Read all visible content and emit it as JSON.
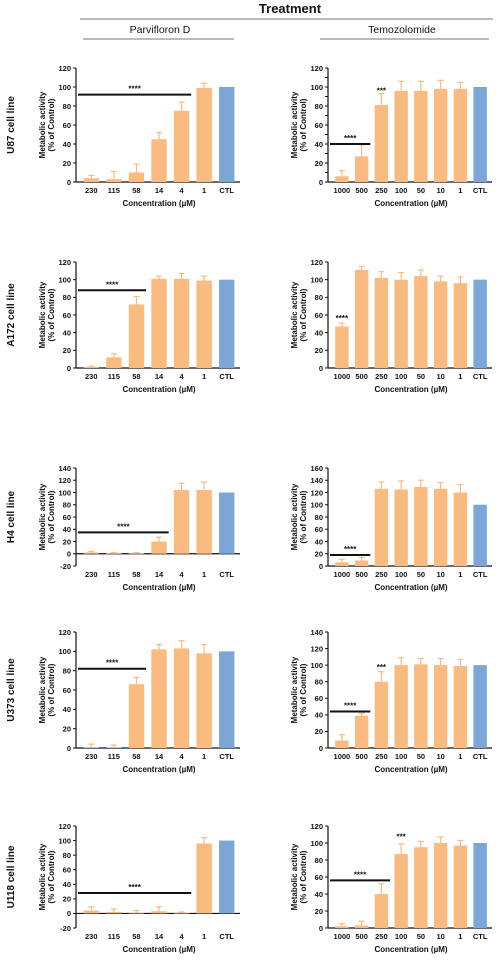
{
  "header": {
    "title": "Treatment",
    "columns": [
      "Parvifloron D",
      "Temozolomide"
    ]
  },
  "colors": {
    "treated": "#f9bb80",
    "control": "#7ba6d6",
    "axis": "#111111"
  },
  "chart_data": [
    {
      "type": "bar",
      "row": 0,
      "col": 0,
      "cell_line": "U87 cell line",
      "categories": [
        "230",
        "115",
        "58",
        "14",
        "4",
        "1",
        "CTL"
      ],
      "values": [
        4,
        3,
        10,
        45,
        75,
        99,
        100
      ],
      "errors": [
        3,
        8,
        9,
        7,
        9,
        5,
        0
      ],
      "ylim": [
        0,
        120
      ],
      "yticks": [
        0,
        20,
        40,
        60,
        80,
        100,
        120
      ],
      "ylabel": [
        "Metabolic activity",
        "(% of Control)"
      ],
      "xlabel": "Concentration (µM)",
      "annotations": [
        {
          "text": "****",
          "type": "bar",
          "from": 0,
          "to": 4,
          "y": 92
        }
      ]
    },
    {
      "type": "bar",
      "row": 0,
      "col": 1,
      "cell_line": "U87 cell line",
      "categories": [
        "1000",
        "500",
        "250",
        "100",
        "50",
        "10",
        "1",
        "CTL"
      ],
      "values": [
        6,
        27,
        81,
        96,
        96,
        98,
        98,
        100
      ],
      "errors": [
        6,
        12,
        12,
        10,
        10,
        9,
        7,
        0
      ],
      "ylim": [
        0,
        120
      ],
      "yticks": [
        0,
        10,
        20,
        30,
        40,
        50,
        60,
        70,
        80,
        90,
        100,
        110,
        120
      ],
      "ylabel": [
        "Metabolic activity",
        "(% of Control)"
      ],
      "xlabel": "Concentration (µM)",
      "annotations": [
        {
          "text": "****",
          "type": "bar",
          "from": 0,
          "to": 1,
          "y": 40
        },
        {
          "text": "***",
          "type": "label",
          "at": 2,
          "y": 93
        }
      ]
    },
    {
      "type": "bar",
      "row": 1,
      "col": 0,
      "cell_line": "A172 cell line",
      "categories": [
        "230",
        "115",
        "58",
        "14",
        "4",
        "1",
        "CTL"
      ],
      "values": [
        1,
        12,
        72,
        101,
        101,
        99,
        100
      ],
      "errors": [
        1,
        4,
        9,
        3,
        6,
        5,
        0
      ],
      "ylim": [
        0,
        120
      ],
      "yticks": [
        0,
        20,
        40,
        60,
        80,
        100,
        120
      ],
      "ylabel": [
        "Metabolic activity",
        "(% of Control)"
      ],
      "xlabel": "Concentration (µM)",
      "annotations": [
        {
          "text": "****",
          "type": "bar",
          "from": 0,
          "to": 2,
          "y": 88
        }
      ]
    },
    {
      "type": "bar",
      "row": 1,
      "col": 1,
      "cell_line": "A172 cell line",
      "categories": [
        "1000",
        "500",
        "250",
        "100",
        "50",
        "10",
        "1",
        "CTL"
      ],
      "values": [
        47,
        111,
        102,
        100,
        104,
        98,
        96,
        100
      ],
      "errors": [
        4,
        4,
        7,
        8,
        7,
        6,
        7,
        0
      ],
      "ylim": [
        0,
        120
      ],
      "yticks": [
        0,
        20,
        40,
        60,
        80,
        100,
        120
      ],
      "ylabel": [
        "Metabolic activity",
        "(% of Control)"
      ],
      "xlabel": "Concentration (µM)",
      "annotations": [
        {
          "text": "****",
          "type": "label",
          "at": 0,
          "y": 53
        }
      ]
    },
    {
      "type": "bar",
      "row": 2,
      "col": 0,
      "cell_line": "H4 cell line",
      "categories": [
        "230",
        "115",
        "58",
        "14",
        "4",
        "1",
        "CTL"
      ],
      "values": [
        2,
        1,
        1,
        20,
        104,
        104,
        100
      ],
      "errors": [
        2,
        1,
        1,
        7,
        11,
        13,
        0
      ],
      "ylim": [
        -20,
        140
      ],
      "yticks": [
        -20,
        0,
        20,
        40,
        60,
        80,
        100,
        120,
        140
      ],
      "ylabel": [
        "Metabolic activity",
        "(% of Control)"
      ],
      "xlabel": "Concentration (µM)",
      "annotations": [
        {
          "text": "****",
          "type": "bar",
          "from": 0,
          "to": 3,
          "y": 35
        }
      ]
    },
    {
      "type": "bar",
      "row": 2,
      "col": 1,
      "cell_line": "H4 cell line",
      "categories": [
        "1000",
        "500",
        "250",
        "100",
        "50",
        "10",
        "1",
        "CTL"
      ],
      "values": [
        6,
        9,
        126,
        125,
        129,
        126,
        120,
        100
      ],
      "errors": [
        5,
        5,
        11,
        14,
        11,
        10,
        13,
        0
      ],
      "ylim": [
        0,
        160
      ],
      "yticks": [
        0,
        20,
        40,
        60,
        80,
        100,
        120,
        140,
        160
      ],
      "ylabel": [
        "Metabolic activity",
        "(% of Control)"
      ],
      "xlabel": "Concentration (µM)",
      "annotations": [
        {
          "text": "****",
          "type": "bar",
          "from": 0,
          "to": 1,
          "y": 18
        }
      ]
    },
    {
      "type": "bar",
      "row": 3,
      "col": 0,
      "cell_line": "U373 cell line",
      "categories": [
        "230",
        "115",
        "58",
        "14",
        "4",
        "1",
        "CTL"
      ],
      "values": [
        1,
        1,
        66,
        102,
        103,
        98,
        100
      ],
      "errors": [
        3,
        2,
        7,
        5,
        8,
        9,
        0
      ],
      "ylim": [
        0,
        120
      ],
      "yticks": [
        0,
        20,
        40,
        60,
        80,
        100,
        120
      ],
      "ylabel": [
        "Metabolic activity",
        "(% of Control)"
      ],
      "xlabel": "Concentration (µM)",
      "annotations": [
        {
          "text": "****",
          "type": "bar",
          "from": 0,
          "to": 2,
          "y": 82
        }
      ]
    },
    {
      "type": "bar",
      "row": 3,
      "col": 1,
      "cell_line": "U373 cell line",
      "categories": [
        "1000",
        "500",
        "250",
        "100",
        "50",
        "10",
        "1",
        "CTL"
      ],
      "values": [
        9,
        39,
        80,
        100,
        101,
        100,
        99,
        100
      ],
      "errors": [
        7,
        3,
        12,
        9,
        7,
        8,
        8,
        0
      ],
      "ylim": [
        0,
        140
      ],
      "yticks": [
        0,
        20,
        40,
        60,
        80,
        100,
        120,
        140
      ],
      "ylabel": [
        "Metabolic activity",
        "(% of Control)"
      ],
      "xlabel": "Concentration (µM)",
      "annotations": [
        {
          "text": "****",
          "type": "bar",
          "from": 0,
          "to": 1,
          "y": 44
        },
        {
          "text": "***",
          "type": "label",
          "at": 2,
          "y": 94
        }
      ]
    },
    {
      "type": "bar",
      "row": 4,
      "col": 0,
      "cell_line": "U118 cell line",
      "categories": [
        "230",
        "115",
        "58",
        "14",
        "4",
        "1",
        "CTL"
      ],
      "values": [
        4,
        2,
        1,
        3,
        1,
        96,
        100
      ],
      "errors": [
        5,
        4,
        3,
        6,
        1,
        8,
        0
      ],
      "ylim": [
        -20,
        120
      ],
      "yticks": [
        -20,
        0,
        20,
        40,
        60,
        80,
        100,
        120
      ],
      "ylabel": [
        "Metabolic activity",
        "(% of Control)"
      ],
      "xlabel": "Concentration (µM)",
      "annotations": [
        {
          "text": "****",
          "type": "bar",
          "from": 0,
          "to": 4,
          "y": 28
        }
      ]
    },
    {
      "type": "bar",
      "row": 4,
      "col": 1,
      "cell_line": "U118 cell line",
      "categories": [
        "1000",
        "500",
        "250",
        "100",
        "50",
        "10",
        "1",
        "CTL"
      ],
      "values": [
        2,
        3,
        40,
        87,
        95,
        100,
        97,
        100
      ],
      "errors": [
        3,
        5,
        12,
        12,
        7,
        7,
        6,
        0
      ],
      "ylim": [
        0,
        120
      ],
      "yticks": [
        0,
        20,
        40,
        60,
        80,
        100,
        120
      ],
      "ylabel": [
        "Metabolic activity",
        "(% of Control)"
      ],
      "xlabel": "Concentration (µM)",
      "annotations": [
        {
          "text": "****",
          "type": "bar",
          "from": 0,
          "to": 2,
          "y": 56
        },
        {
          "text": "***",
          "type": "label",
          "at": 3,
          "y": 104
        }
      ]
    }
  ]
}
